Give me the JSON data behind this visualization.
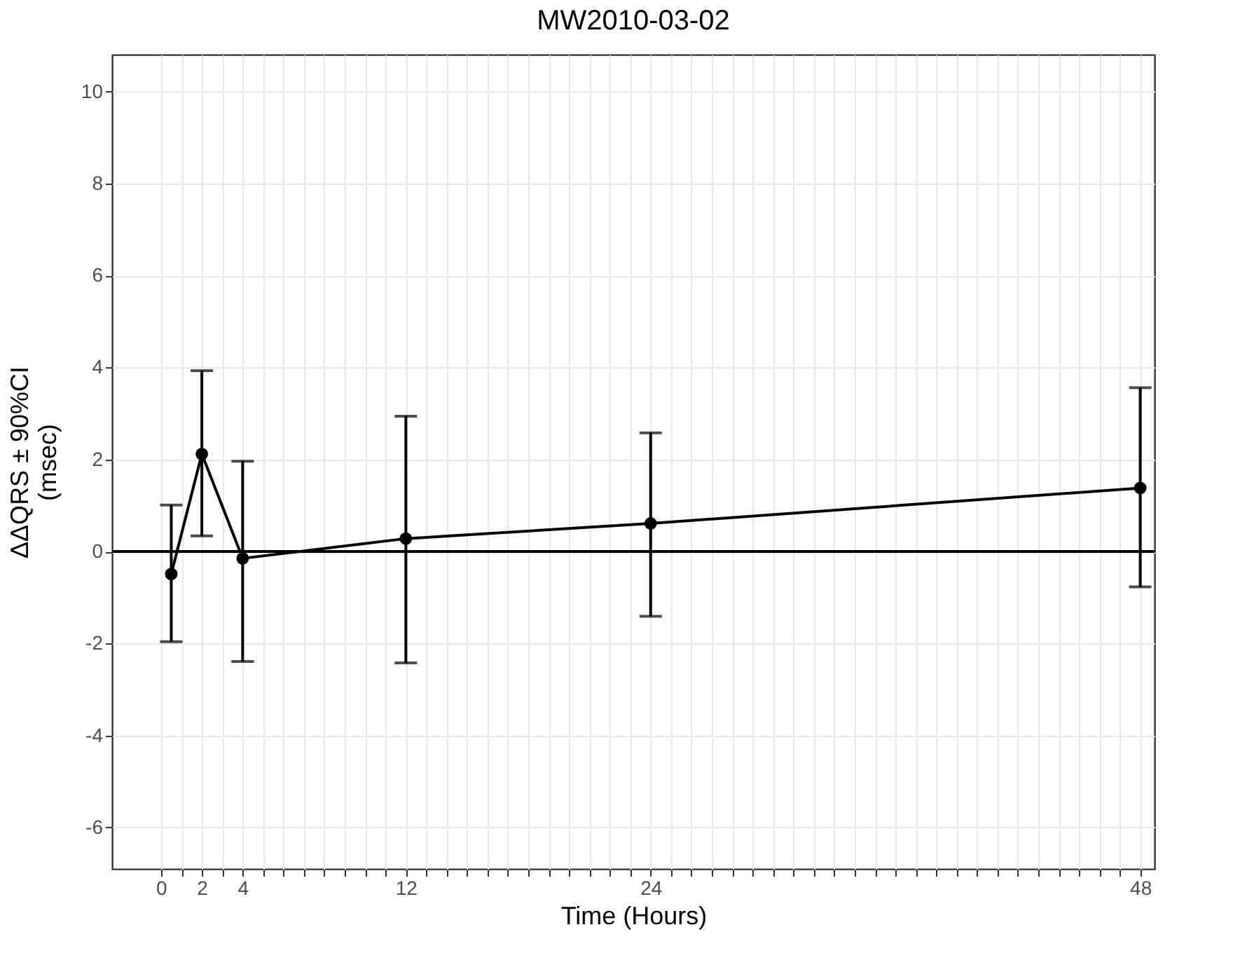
{
  "chart_data": {
    "type": "line",
    "title": "MW2010-03-02",
    "xlabel": "Time (Hours)",
    "ylabel": "ΔΔQRS ± 90%CI\n(msec)",
    "x": [
      0.5,
      2,
      4,
      12,
      24,
      48
    ],
    "series": [
      {
        "color": "#000000",
        "values": [
          -0.49,
          2.12,
          -0.15,
          0.28,
          0.61,
          1.38
        ],
        "errors": [
          [
            -1.96,
            1.01
          ],
          [
            0.34,
            3.93
          ],
          [
            -2.39,
            1.96
          ],
          [
            -2.42,
            2.94
          ],
          [
            -1.41,
            2.58
          ],
          [
            -0.77,
            3.56
          ]
        ]
      }
    ],
    "xlim": [
      -2.4,
      48.7
    ],
    "ylim": [
      -6.9,
      10.8
    ],
    "xticks": [
      0,
      {
        "value": 1,
        "label": null
      },
      2,
      {
        "value": 3,
        "label": null
      },
      4,
      {
        "value": 5,
        "label": null
      },
      {
        "value": 6,
        "label": null
      },
      {
        "value": 7,
        "label": null
      },
      {
        "value": 8,
        "label": null
      },
      {
        "value": 9,
        "label": null
      },
      {
        "value": 10,
        "label": null
      },
      {
        "value": 11,
        "label": null
      },
      12,
      {
        "value": 13,
        "label": null
      },
      {
        "value": 14,
        "label": null
      },
      {
        "value": 15,
        "label": null
      },
      {
        "value": 16,
        "label": null
      },
      {
        "value": 17,
        "label": null
      },
      {
        "value": 18,
        "label": null
      },
      {
        "value": 19,
        "label": null
      },
      {
        "value": 20,
        "label": null
      },
      {
        "value": 21,
        "label": null
      },
      {
        "value": 22,
        "label": null
      },
      {
        "value": 23,
        "label": null
      },
      24,
      {
        "value": 25,
        "label": null
      },
      {
        "value": 26,
        "label": null
      },
      {
        "value": 27,
        "label": null
      },
      {
        "value": 28,
        "label": null
      },
      {
        "value": 29,
        "label": null
      },
      {
        "value": 30,
        "label": null
      },
      {
        "value": 31,
        "label": null
      },
      {
        "value": 32,
        "label": null
      },
      {
        "value": 33,
        "label": null
      },
      {
        "value": 34,
        "label": null
      },
      {
        "value": 35,
        "label": null
      },
      {
        "value": 36,
        "label": null
      },
      {
        "value": 37,
        "label": null
      },
      {
        "value": 38,
        "label": null
      },
      {
        "value": 39,
        "label": null
      },
      {
        "value": 40,
        "label": null
      },
      {
        "value": 41,
        "label": null
      },
      {
        "value": 42,
        "label": null
      },
      {
        "value": 43,
        "label": null
      },
      {
        "value": 44,
        "label": null
      },
      {
        "value": 45,
        "label": null
      },
      {
        "value": 46,
        "label": null
      },
      {
        "value": 47,
        "label": null
      },
      48
    ],
    "yticks": [
      -6,
      -4,
      -2,
      0,
      2,
      4,
      6,
      8,
      10
    ],
    "ref_lines": [
      {
        "axis": "y",
        "value": 0,
        "color": "#000000"
      }
    ],
    "grid": true,
    "marker": "circle",
    "line_style": "solid"
  }
}
